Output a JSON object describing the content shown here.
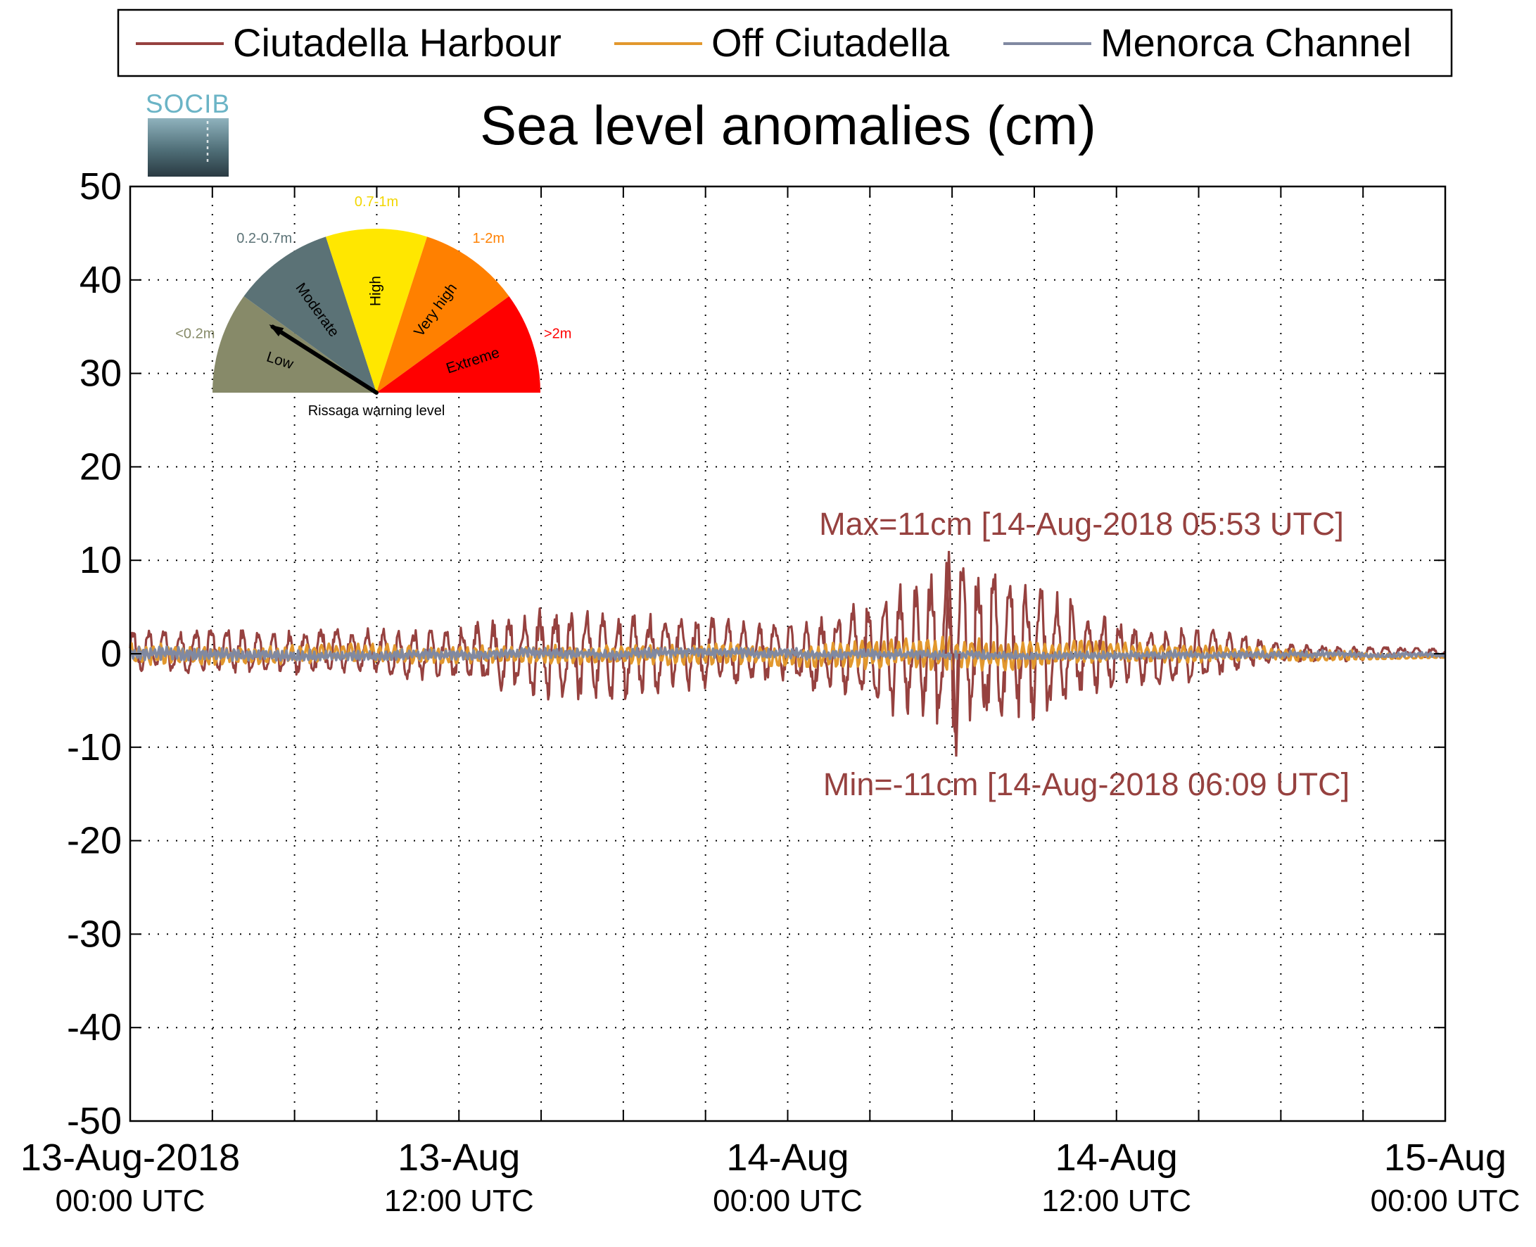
{
  "chart_data": {
    "type": "line",
    "title": "Sea level anomalies (cm)",
    "xlabel": "",
    "ylabel": "",
    "ylim": [
      -50,
      50
    ],
    "yticks": [
      -50,
      -40,
      -30,
      -20,
      -10,
      0,
      10,
      20,
      30,
      40,
      50
    ],
    "x_range": [
      "2018-08-13T00:00Z",
      "2018-08-15T00:00Z"
    ],
    "x_minor_ticks_hours": 3,
    "x_tick_labels": [
      {
        "date": "13-Aug-2018",
        "time": "00:00 UTC",
        "x": "2018-08-13T00:00Z"
      },
      {
        "date": "13-Aug",
        "time": "12:00 UTC",
        "x": "2018-08-13T12:00Z"
      },
      {
        "date": "14-Aug",
        "time": "00:00 UTC",
        "x": "2018-08-14T00:00Z"
      },
      {
        "date": "14-Aug",
        "time": "12:00 UTC",
        "x": "2018-08-14T12:00Z"
      },
      {
        "date": "15-Aug",
        "time": "00:00 UTC",
        "x": "2018-08-15T00:00Z"
      }
    ],
    "grid": true,
    "legend_position": "top, outside plot",
    "series": [
      {
        "name": "Ciutadella Harbour",
        "color": "#96413f",
        "envelope": {
          "x": [
            "2018-08-13T00:00Z",
            "2018-08-13T06:00Z",
            "2018-08-13T12:00Z",
            "2018-08-13T15:00Z",
            "2018-08-13T18:00Z",
            "2018-08-14T00:00Z",
            "2018-08-14T03:00Z",
            "2018-08-14T06:00Z",
            "2018-08-14T09:00Z",
            "2018-08-14T12:00Z",
            "2018-08-14T15:00Z",
            "2018-08-14T18:00Z",
            "2018-08-15T00:00Z"
          ],
          "amplitude_cm": [
            2.5,
            2.5,
            3,
            5,
            5,
            3,
            6,
            10,
            8,
            3.5,
            3,
            1,
            0.5
          ]
        }
      },
      {
        "name": "Off Ciutadella",
        "color": "#e2982d",
        "envelope": {
          "x": [
            "2018-08-13T00:00Z",
            "2018-08-13T12:00Z",
            "2018-08-14T00:00Z",
            "2018-08-14T06:00Z",
            "2018-08-14T12:00Z",
            "2018-08-15T00:00Z"
          ],
          "amplitude_cm": [
            1.2,
            1.0,
            1.3,
            2.0,
            1.2,
            0.4
          ]
        }
      },
      {
        "name": "Menorca Channel",
        "color": "#8089a1",
        "envelope": {
          "x": [
            "2018-08-13T00:00Z",
            "2018-08-13T12:00Z",
            "2018-08-14T00:00Z",
            "2018-08-14T12:00Z",
            "2018-08-15T00:00Z"
          ],
          "amplitude_cm": [
            0.8,
            0.6,
            0.6,
            0.5,
            0.3
          ]
        }
      }
    ],
    "annotations": {
      "max": {
        "text": "Max=11cm [14-Aug-2018 05:53 UTC]",
        "value": 11,
        "x": "2018-08-14T05:53Z"
      },
      "min": {
        "text": "Min=-11cm [14-Aug-2018 06:09 UTC]",
        "value": -11,
        "x": "2018-08-14T06:09Z"
      }
    }
  },
  "logo": {
    "text": "SOCIB"
  },
  "gauge": {
    "caption": "Rissaga warning level",
    "segments": [
      {
        "label": "Low",
        "range": "<0.2m",
        "color": "#878a69",
        "range_color": "#868a68"
      },
      {
        "label": "Moderate",
        "range": "0.2-0.7m",
        "color": "#5b7276",
        "range_color": "#5b7276"
      },
      {
        "label": "High",
        "range": "0.7-1m",
        "color": "#ffe700",
        "range_color": "#f2d600"
      },
      {
        "label": "Very high",
        "range": "1-2m",
        "color": "#ff8000",
        "range_color": "#ff8000"
      },
      {
        "label": "Extreme",
        "range": ">2m",
        "color": "#ff0000",
        "range_color": "#ff0000"
      }
    ],
    "current_level": "Low"
  }
}
